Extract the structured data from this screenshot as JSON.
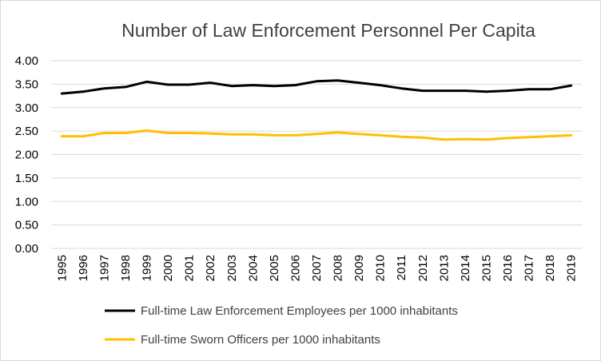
{
  "chart_data": {
    "type": "line",
    "title": "Number of Law Enforcement Personnel Per Capita",
    "xlabel": "",
    "ylabel": "",
    "ylim": [
      0,
      4
    ],
    "y_ticks": [
      "0.00",
      "0.50",
      "1.00",
      "1.50",
      "2.00",
      "2.50",
      "3.00",
      "3.50",
      "4.00"
    ],
    "grid": "horizontal",
    "legend_position": "bottom",
    "x": [
      "1995",
      "1996",
      "1997",
      "1998",
      "1999",
      "2000",
      "2001",
      "2002",
      "2003",
      "2004",
      "2005",
      "2006",
      "2007",
      "2008",
      "2009",
      "2010",
      "2011",
      "2012",
      "2013",
      "2014",
      "2015",
      "2016",
      "2017",
      "2018",
      "2019"
    ],
    "series": [
      {
        "name": "Full-time Law Enforcement Employees per 1000 inhabitants",
        "color": "#000000",
        "values": [
          3.3,
          3.34,
          3.41,
          3.44,
          3.55,
          3.49,
          3.49,
          3.53,
          3.46,
          3.48,
          3.46,
          3.48,
          3.56,
          3.58,
          3.53,
          3.48,
          3.41,
          3.36,
          3.36,
          3.36,
          3.34,
          3.36,
          3.39,
          3.39,
          3.47
        ]
      },
      {
        "name": "Full-time Sworn Officers per 1000 inhabitants",
        "color": "#ffc000",
        "values": [
          2.39,
          2.39,
          2.46,
          2.46,
          2.51,
          2.46,
          2.46,
          2.45,
          2.43,
          2.43,
          2.41,
          2.41,
          2.44,
          2.47,
          2.44,
          2.41,
          2.38,
          2.36,
          2.32,
          2.33,
          2.32,
          2.35,
          2.37,
          2.39,
          2.41
        ]
      }
    ]
  }
}
